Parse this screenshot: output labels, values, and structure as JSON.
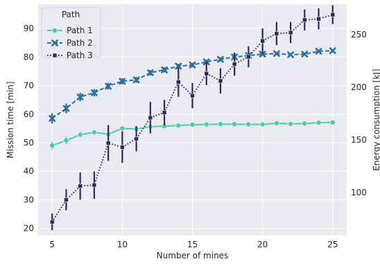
{
  "chart_data": {
    "type": "line",
    "xlabel": "Number of mines",
    "ylabel": "Mission time [min]",
    "y2label": "Energy consumption [kJ]",
    "xlim": [
      4,
      26
    ],
    "ylim": [
      17.5,
      98.5
    ],
    "y2lim": [
      59,
      279
    ],
    "xticks": [
      5,
      10,
      15,
      20,
      25
    ],
    "yticks": [
      20,
      30,
      40,
      50,
      60,
      70,
      80,
      90
    ],
    "y2ticks": [
      100,
      150,
      200,
      250
    ],
    "grid": true,
    "background": "#eaeaf2",
    "legend": {
      "title": "Path",
      "placement": "upper-left",
      "entries": [
        "Path 1",
        "Path 2",
        "Path 3"
      ]
    },
    "x": [
      5,
      6,
      7,
      8,
      9,
      10,
      11,
      12,
      13,
      14,
      15,
      16,
      17,
      18,
      19,
      20,
      21,
      22,
      23,
      24,
      25
    ],
    "series": [
      {
        "name": "Path 1",
        "axis": "left",
        "color": "#4cc9b0",
        "dash": "solid",
        "marker": "circle",
        "values": [
          49.0,
          50.8,
          52.8,
          53.6,
          53.0,
          55.0,
          54.8,
          55.6,
          55.8,
          56.0,
          56.3,
          56.4,
          56.5,
          56.5,
          56.4,
          56.4,
          56.8,
          56.6,
          56.7,
          57.0,
          57.1
        ],
        "err": [
          1.3,
          1.3,
          1.0,
          0.8,
          0.8,
          0.6,
          0.5,
          0.5,
          0.4,
          0.4,
          0.4,
          0.3,
          0.3,
          0.3,
          0.3,
          0.3,
          0.3,
          0.3,
          0.3,
          0.3,
          0.3
        ]
      },
      {
        "name": "Path 2",
        "axis": "left",
        "color": "#2c6e9c",
        "dash": "dashed",
        "marker": "x",
        "values": [
          58.5,
          62.0,
          66.0,
          67.5,
          69.8,
          71.5,
          72.0,
          74.5,
          75.5,
          76.8,
          77.2,
          78.3,
          79.2,
          80.0,
          80.5,
          81.0,
          81.2,
          80.8,
          81.0,
          82.0,
          82.2
        ],
        "err": [
          1.8,
          1.7,
          1.5,
          1.3,
          1.2,
          1.1,
          1.0,
          1.0,
          0.9,
          0.8,
          0.8,
          0.7,
          0.7,
          0.6,
          0.6,
          0.6,
          0.5,
          0.5,
          0.5,
          0.5,
          0.5
        ]
      },
      {
        "name": "Path 3",
        "axis": "right",
        "color": "#2d2a5c",
        "dash": "dotted",
        "marker": "square",
        "values": [
          72,
          93,
          106,
          107,
          147,
          143,
          151,
          171,
          176,
          205,
          192,
          213,
          206,
          222,
          229,
          244,
          251,
          252,
          264,
          265,
          269
        ],
        "err": [
          8,
          10,
          13,
          13,
          17,
          15,
          12,
          15,
          12,
          14,
          12,
          11,
          12,
          11,
          10,
          12,
          11,
          10,
          10,
          10,
          9
        ]
      }
    ]
  }
}
